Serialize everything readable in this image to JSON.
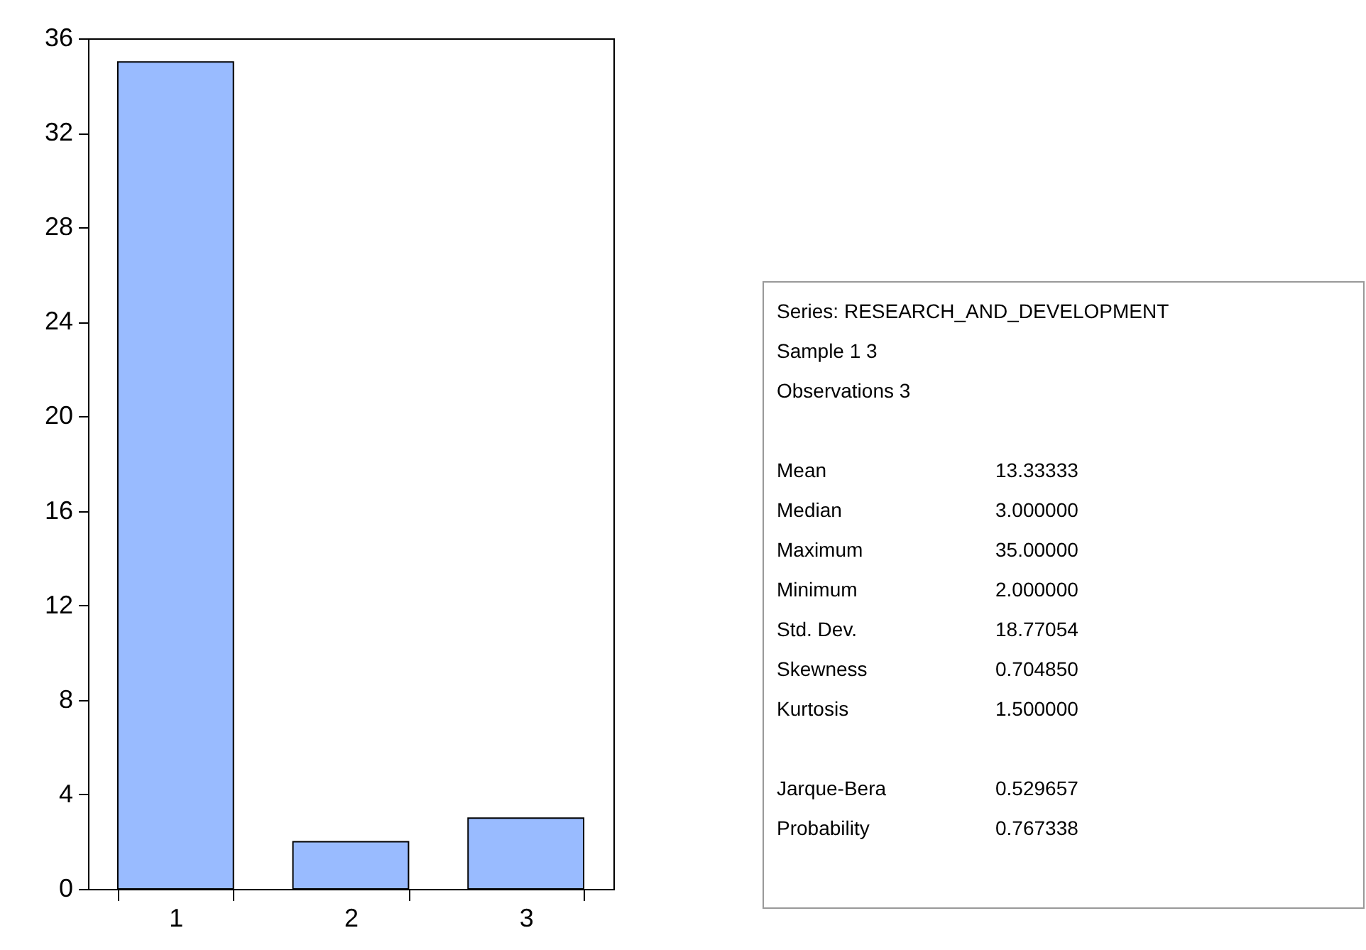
{
  "chart_data": [
    {
      "type": "bar",
      "categories": [
        "1",
        "2",
        "3"
      ],
      "values": [
        35,
        2,
        3
      ],
      "color": "#99bbff",
      "ylim": [
        0,
        36
      ],
      "yticks": [
        0,
        4,
        8,
        12,
        16,
        20,
        24,
        28,
        32,
        36
      ],
      "grid": false
    },
    {
      "type": "other",
      "annotations": [
        "Series: RESEARCH_AND_DEVELOPMENT",
        "Sample 1 3",
        "Observations 3",
        "Mean",
        "13.33333",
        "Median",
        "3.000000",
        "Maximum",
        "35.00000",
        "Minimum",
        "2.000000",
        "Std. Dev.",
        "18.77054",
        "Skewness",
        "0.704850",
        "Kurtosis",
        "1.500000",
        "Jarque-Bera",
        "0.529657",
        "Probability",
        "0.767338"
      ]
    }
  ]
}
